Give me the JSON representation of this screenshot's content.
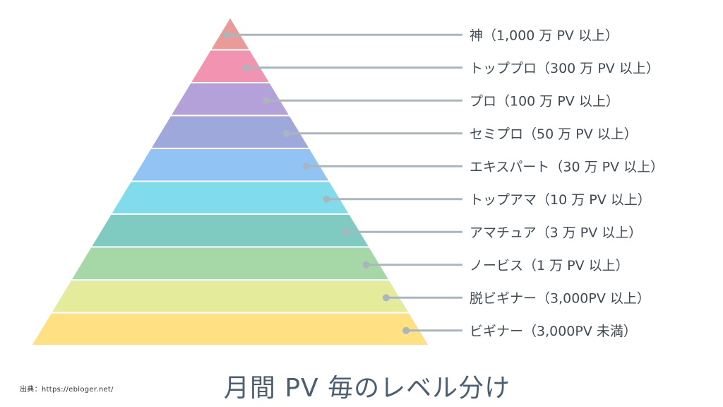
{
  "title": "月間 PV 毎のレベル分け",
  "source": "出典：https://ebloger.net/",
  "colors": {
    "line": "#a9b6bd",
    "dot": "#a9b6bd",
    "text": "#3f4b55"
  },
  "levels": [
    {
      "label": "神（1,000 万 PV 以上）",
      "color": "#ea9a97"
    },
    {
      "label": "トッププロ（300 万 PV 以上）",
      "color": "#f293b1"
    },
    {
      "label": "プロ（100 万 PV 以上）",
      "color": "#b5a1da"
    },
    {
      "label": "セミプロ（50 万 PV 以上）",
      "color": "#9fa8db"
    },
    {
      "label": "エキスパート（30 万 PV 以上）",
      "color": "#91c4f5"
    },
    {
      "label": "トップアマ（10 万 PV 以上）",
      "color": "#80dbea"
    },
    {
      "label": "アマチュア（3 万 PV 以上）",
      "color": "#7fcbc1"
    },
    {
      "label": "ノービス（1 万 PV 以上）",
      "color": "#a6d7a6"
    },
    {
      "label": "脱ビギナー（3,000PV 以上）",
      "color": "#e4ec9b"
    },
    {
      "label": "ビギナー（3,000PV 未満）",
      "color": "#ffe083"
    }
  ]
}
